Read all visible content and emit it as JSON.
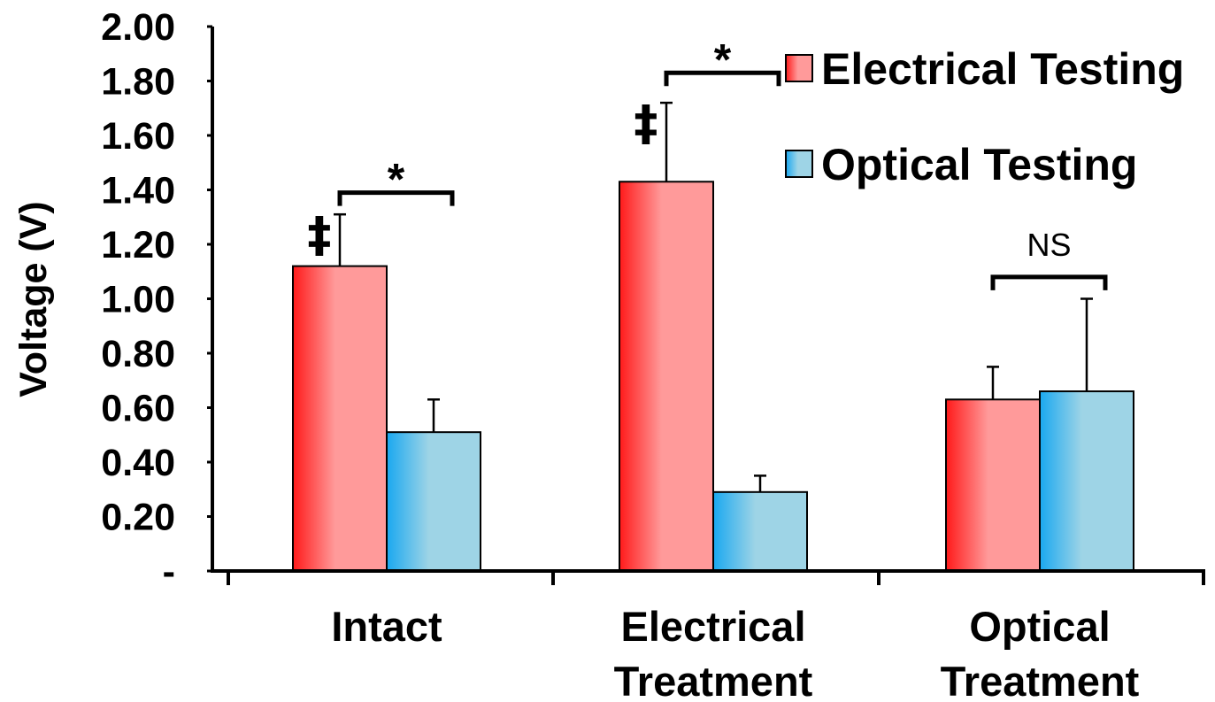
{
  "chart_data": {
    "type": "bar",
    "ylabel": "Voltage (V)",
    "ylim": [
      0,
      2.0
    ],
    "y_ticks": [
      {
        "value": 0,
        "label": "-"
      },
      {
        "value": 0.2,
        "label": "0.20"
      },
      {
        "value": 0.4,
        "label": "0.40"
      },
      {
        "value": 0.6,
        "label": "0.60"
      },
      {
        "value": 0.8,
        "label": "0.80"
      },
      {
        "value": 1.0,
        "label": "1.00"
      },
      {
        "value": 1.2,
        "label": "1.20"
      },
      {
        "value": 1.4,
        "label": "1.40"
      },
      {
        "value": 1.6,
        "label": "1.60"
      },
      {
        "value": 1.8,
        "label": "1.80"
      },
      {
        "value": 2.0,
        "label": "2.00"
      }
    ],
    "categories": [
      [
        "Intact"
      ],
      [
        "Electrical",
        "Treatment"
      ],
      [
        "Optical",
        "Treatment"
      ]
    ],
    "series": [
      {
        "name": "Electrical Testing",
        "values": [
          1.12,
          1.43,
          0.63
        ],
        "errors": [
          0.19,
          0.29,
          0.12
        ],
        "color": "#ff1a1a",
        "color_light": "#ff9a9a"
      },
      {
        "name": "Optical Testing",
        "values": [
          0.51,
          0.29,
          0.66
        ],
        "errors": [
          0.12,
          0.06,
          0.34
        ],
        "color": "#1aa8f0",
        "color_light": "#9ed4e6"
      }
    ],
    "annotations": [
      {
        "category": 0,
        "text": "*",
        "style": "star"
      },
      {
        "category": 1,
        "text": "*",
        "style": "star"
      },
      {
        "category": 2,
        "text": "NS",
        "style": "ns"
      }
    ],
    "dagger_marks": [
      {
        "category": 0,
        "text": "‡"
      },
      {
        "category": 1,
        "text": "‡"
      }
    ],
    "legend_placement": "top-right",
    "grid": false
  }
}
